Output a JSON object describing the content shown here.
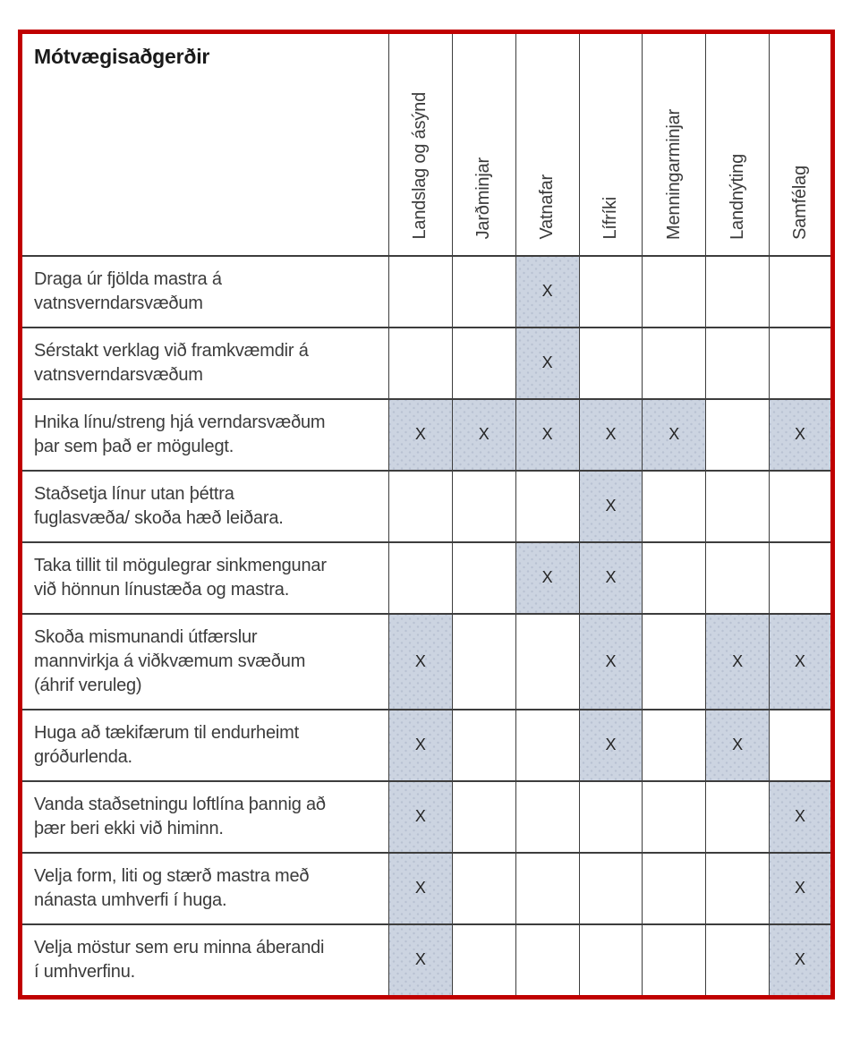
{
  "table": {
    "title": "Mótvægisaðgerðir",
    "mark_glyph": "X",
    "columns": [
      "Landslag og ásýnd",
      "Jarðminjar",
      "Vatnafar",
      "Lífríki",
      "Menningarminjar",
      "Landnýting",
      "Samfélag"
    ],
    "rows": [
      {
        "label": "Draga úr fjölda mastra á\nvatnsverndarsvæðum",
        "marks": [
          0,
          0,
          1,
          0,
          0,
          0,
          0
        ]
      },
      {
        "label": "Sérstakt verklag við framkvæmdir á\nvatnsverndarsvæðum",
        "marks": [
          0,
          0,
          1,
          0,
          0,
          0,
          0
        ]
      },
      {
        "label": "Hnika línu/streng hjá verndarsvæðum\nþar sem það er mögulegt.",
        "marks": [
          1,
          1,
          1,
          1,
          1,
          0,
          1
        ]
      },
      {
        "label": "Staðsetja línur utan þéttra\nfuglasvæða/ skoða hæð leiðara.",
        "marks": [
          0,
          0,
          0,
          1,
          0,
          0,
          0
        ]
      },
      {
        "label": "Taka tillit til mögulegrar sinkmengunar\nvið hönnun línustæða og mastra.",
        "marks": [
          0,
          0,
          1,
          1,
          0,
          0,
          0
        ]
      },
      {
        "label": "Skoða mismunandi útfærslur\nmannvirkja á viðkvæmum svæðum\n(áhrif veruleg)",
        "marks": [
          1,
          0,
          0,
          1,
          0,
          1,
          1
        ]
      },
      {
        "label": "Huga að tækifærum til endurheimt\ngróðurlenda.",
        "marks": [
          1,
          0,
          0,
          1,
          0,
          1,
          0
        ]
      },
      {
        "label": "Vanda staðsetningu loftlína þannig að\nþær beri ekki við himinn.",
        "marks": [
          1,
          0,
          0,
          0,
          0,
          0,
          1
        ]
      },
      {
        "label": "Velja form, liti og stærð mastra með\nnánasta umhverfi í huga.",
        "marks": [
          1,
          0,
          0,
          0,
          0,
          0,
          1
        ]
      },
      {
        "label": "Velja möstur sem eru minna áberandi\ní umhverfinu.",
        "marks": [
          1,
          0,
          0,
          0,
          0,
          0,
          1
        ]
      }
    ],
    "colors": {
      "outer_border": "#C00000",
      "grid_line": "#3D3D3D",
      "filled_cell": "#CCD4E1",
      "filled_cell_dot": "#B8C1D2",
      "text": "#3B3B3B"
    }
  }
}
